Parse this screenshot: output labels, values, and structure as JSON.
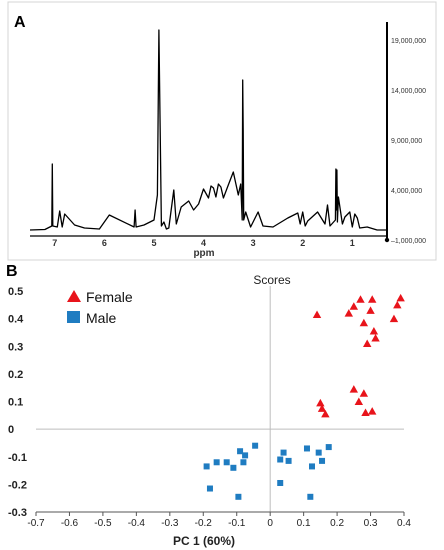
{
  "chart_data": [
    {
      "panel_label": "A",
      "type": "line",
      "xlabel": "ppm",
      "x_ticks": [
        "7",
        "6",
        "5",
        "4",
        "3",
        "2",
        "1"
      ],
      "y_ticks": [
        "19,000,000",
        "14,000,000",
        "9,000,000",
        "4,000,000",
        "–1,000,000"
      ],
      "xlim": [
        7.5,
        0.3
      ],
      "ylim": [
        -1000000,
        20000000
      ],
      "x_reversed": true,
      "color": "#000000",
      "series": [
        {
          "x": [
            7.5,
            7.2,
            7.06,
            7.05,
            7.04,
            6.95,
            6.9,
            6.85,
            6.8,
            6.6,
            6.4,
            6.1,
            5.9,
            5.4,
            5.38,
            5.36,
            5.2,
            5.0,
            4.93,
            4.9,
            4.85,
            4.8,
            4.75,
            4.7,
            4.6,
            4.55,
            4.45,
            4.3,
            4.2,
            4.1,
            4.0,
            3.9,
            3.85,
            3.8,
            3.75,
            3.7,
            3.65,
            3.6,
            3.5,
            3.4,
            3.3,
            3.25,
            3.22,
            3.21,
            3.2,
            3.19,
            3.15,
            3.05,
            2.9,
            2.8,
            2.6,
            2.3,
            2.1,
            2.05,
            2.0,
            1.95,
            1.9,
            1.7,
            1.55,
            1.5,
            1.45,
            1.34,
            1.33,
            1.32,
            1.31,
            1.3,
            1.28,
            1.2,
            1.15,
            1.05,
            1.0,
            0.95,
            0.9,
            0.85,
            0.7,
            0.5,
            0.3
          ],
          "y": [
            0,
            50000,
            400000,
            6600000,
            400000,
            300000,
            1900000,
            300000,
            1600000,
            500000,
            200000,
            100000,
            1500000,
            300000,
            2000000,
            300000,
            500000,
            1000000,
            3500000,
            20000000,
            400000,
            800000,
            100000,
            200000,
            4000000,
            600000,
            2300000,
            2900000,
            2000000,
            2600000,
            4100000,
            3200000,
            4400000,
            4200000,
            3300000,
            4600000,
            4300000,
            3200000,
            4500000,
            5800000,
            3500000,
            4600000,
            1000000,
            15000000,
            10000000,
            1000000,
            1800000,
            300000,
            1800000,
            400000,
            300000,
            1200000,
            1700000,
            600000,
            1800000,
            400000,
            900000,
            1800000,
            600000,
            2500000,
            400000,
            1000000,
            6100000,
            2000000,
            6000000,
            800000,
            3300000,
            600000,
            1300000,
            1800000,
            300000,
            1600000,
            1200000,
            200000,
            300000,
            0,
            0
          ]
        }
      ]
    },
    {
      "panel_label": "B",
      "type": "scatter",
      "title": "Scores",
      "xlabel": "PC 1 (60%)",
      "xlim": [
        -0.7,
        0.4
      ],
      "ylim": [
        -0.3,
        0.5
      ],
      "x_ticks": [
        "-0.7",
        "-0.6",
        "-0.5",
        "-0.4",
        "-0.3",
        "-0.2",
        "-0.1",
        "0",
        "0.1",
        "0.2",
        "0.3",
        "0.4"
      ],
      "y_ticks": [
        "0.5",
        "0.4",
        "0.3",
        "0.2",
        "0.1",
        "0",
        "-0.1",
        "-0.2",
        "-0.3"
      ],
      "legend_position": "top-left",
      "series": [
        {
          "name": "Female",
          "marker": "triangle",
          "color": "#e8141b",
          "points": [
            [
              0.14,
              0.415
            ],
            [
              0.235,
              0.42
            ],
            [
              0.25,
              0.445
            ],
            [
              0.27,
              0.47
            ],
            [
              0.28,
              0.385
            ],
            [
              0.29,
              0.31
            ],
            [
              0.3,
              0.43
            ],
            [
              0.305,
              0.47
            ],
            [
              0.315,
              0.33
            ],
            [
              0.31,
              0.355
            ],
            [
              0.37,
              0.4
            ],
            [
              0.38,
              0.45
            ],
            [
              0.39,
              0.475
            ],
            [
              0.15,
              0.095
            ],
            [
              0.155,
              0.075
            ],
            [
              0.165,
              0.055
            ],
            [
              0.25,
              0.145
            ],
            [
              0.265,
              0.1
            ],
            [
              0.28,
              0.13
            ],
            [
              0.285,
              0.06
            ],
            [
              0.305,
              0.065
            ]
          ]
        },
        {
          "name": "Male",
          "marker": "square",
          "color": "#1f7cc1",
          "points": [
            [
              -0.19,
              -0.135
            ],
            [
              -0.16,
              -0.12
            ],
            [
              -0.13,
              -0.12
            ],
            [
              -0.11,
              -0.14
            ],
            [
              -0.09,
              -0.08
            ],
            [
              -0.08,
              -0.12
            ],
            [
              -0.075,
              -0.095
            ],
            [
              -0.045,
              -0.06
            ],
            [
              -0.18,
              -0.215
            ],
            [
              -0.095,
              -0.245
            ],
            [
              0.03,
              -0.11
            ],
            [
              0.04,
              -0.085
            ],
            [
              0.055,
              -0.115
            ],
            [
              0.11,
              -0.07
            ],
            [
              0.125,
              -0.135
            ],
            [
              0.145,
              -0.085
            ],
            [
              0.155,
              -0.115
            ],
            [
              0.175,
              -0.065
            ],
            [
              0.03,
              -0.195
            ],
            [
              0.12,
              -0.245
            ]
          ]
        }
      ]
    }
  ]
}
